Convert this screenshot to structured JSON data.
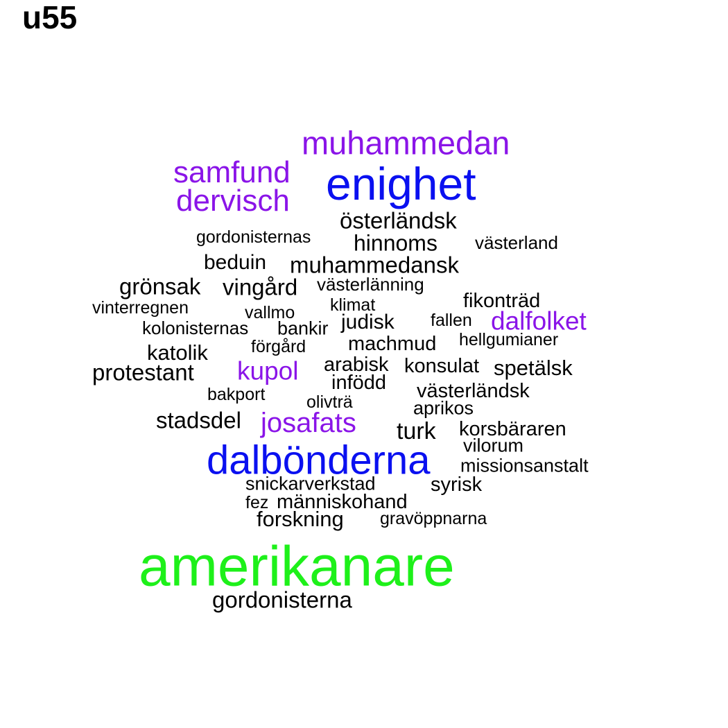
{
  "title": "u55",
  "colors": {
    "black": "#000000",
    "purple": "#8a14e8",
    "blue": "#0a10f0",
    "green": "#1ef01a"
  },
  "words": [
    {
      "text": "amerikanare",
      "color": "green"
    },
    {
      "text": "dalbönderna",
      "color": "blue"
    },
    {
      "text": "enighet",
      "color": "blue"
    },
    {
      "text": "muhammedan",
      "color": "purple"
    },
    {
      "text": "samfund",
      "color": "purple"
    },
    {
      "text": "dervisch",
      "color": "purple"
    },
    {
      "text": "josafats",
      "color": "purple"
    },
    {
      "text": "kupol",
      "color": "purple"
    },
    {
      "text": "dalfolket",
      "color": "purple"
    },
    {
      "text": "österländsk",
      "color": "black"
    },
    {
      "text": "gordonisternas",
      "color": "black"
    },
    {
      "text": "hinnoms",
      "color": "black"
    },
    {
      "text": "västerland",
      "color": "black"
    },
    {
      "text": "beduin",
      "color": "black"
    },
    {
      "text": "muhammedansk",
      "color": "black"
    },
    {
      "text": "grönsak",
      "color": "black"
    },
    {
      "text": "vingård",
      "color": "black"
    },
    {
      "text": "västerlänning",
      "color": "black"
    },
    {
      "text": "vinterregnen",
      "color": "black"
    },
    {
      "text": "klimat",
      "color": "black"
    },
    {
      "text": "fikonträd",
      "color": "black"
    },
    {
      "text": "vallmo",
      "color": "black"
    },
    {
      "text": "kolonisternas",
      "color": "black"
    },
    {
      "text": "bankir",
      "color": "black"
    },
    {
      "text": "judisk",
      "color": "black"
    },
    {
      "text": "fallen",
      "color": "black"
    },
    {
      "text": "katolik",
      "color": "black"
    },
    {
      "text": "förgård",
      "color": "black"
    },
    {
      "text": "machmud",
      "color": "black"
    },
    {
      "text": "hellgumianer",
      "color": "black"
    },
    {
      "text": "protestant",
      "color": "black"
    },
    {
      "text": "arabisk",
      "color": "black"
    },
    {
      "text": "konsulat",
      "color": "black"
    },
    {
      "text": "spetälsk",
      "color": "black"
    },
    {
      "text": "infödd",
      "color": "black"
    },
    {
      "text": "bakport",
      "color": "black"
    },
    {
      "text": "olivträ",
      "color": "black"
    },
    {
      "text": "västerländsk",
      "color": "black"
    },
    {
      "text": "aprikos",
      "color": "black"
    },
    {
      "text": "stadsdel",
      "color": "black"
    },
    {
      "text": "turk",
      "color": "black"
    },
    {
      "text": "korsbäraren",
      "color": "black"
    },
    {
      "text": "vilorum",
      "color": "black"
    },
    {
      "text": "missionsanstalt",
      "color": "black"
    },
    {
      "text": "snickarverkstad",
      "color": "black"
    },
    {
      "text": "syrisk",
      "color": "black"
    },
    {
      "text": "fez",
      "color": "black"
    },
    {
      "text": "människohand",
      "color": "black"
    },
    {
      "text": "forskning",
      "color": "black"
    },
    {
      "text": "gravöppnarna",
      "color": "black"
    },
    {
      "text": "gordonisterna",
      "color": "black"
    }
  ]
}
